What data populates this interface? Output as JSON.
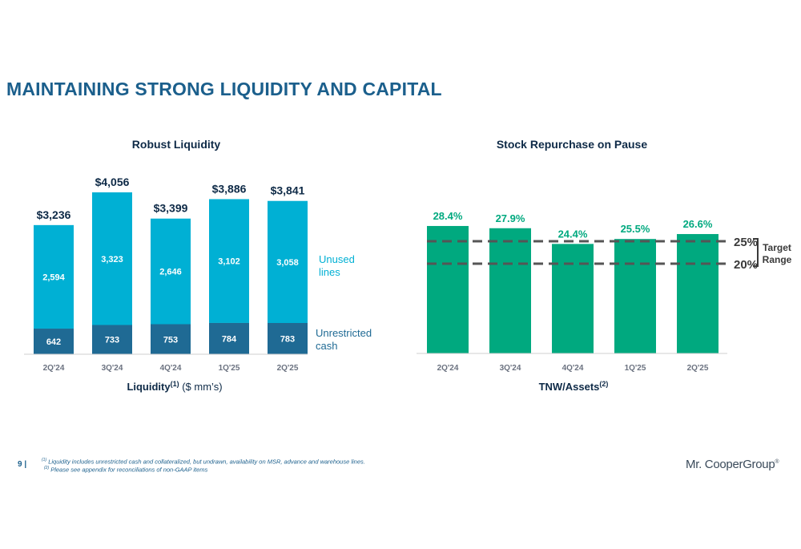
{
  "page_title": "MAINTAINING STRONG LIQUIDITY AND CAPITAL",
  "colors": {
    "title": "#1b5f8c",
    "unused_lines": "#00b0d4",
    "unrestricted_cash": "#1f6a94",
    "tnw_bar": "#00a97f",
    "dashed_line": "#555555"
  },
  "chart_data": [
    {
      "type": "bar",
      "stacked": true,
      "title": "Robust Liquidity",
      "xlabel": "Liquidity",
      "xlabel_sup": "(1)",
      "xlabel_units": "($ mm’s)",
      "categories": [
        "2Q'24",
        "3Q'24",
        "4Q'24",
        "1Q'25",
        "2Q'25"
      ],
      "series": [
        {
          "name": "Unrestricted cash",
          "label_line1": "Unrestricted",
          "label_line2": "cash",
          "values": [
            642,
            733,
            753,
            784,
            783
          ],
          "labels": [
            "642",
            "733",
            "753",
            "784",
            "783"
          ]
        },
        {
          "name": "Unused lines",
          "label_line1": "Unused",
          "label_line2": "lines",
          "values": [
            2594,
            3323,
            2646,
            3102,
            3058
          ],
          "labels": [
            "2,594",
            "3,323",
            "2,646",
            "3,102",
            "3,058"
          ]
        }
      ],
      "totals": [
        3236,
        4056,
        3399,
        3886,
        3841
      ],
      "total_labels": [
        "$3,236",
        "$4,056",
        "$3,399",
        "$3,886",
        "$3,841"
      ]
    },
    {
      "type": "bar",
      "title": "Stock Repurchase on Pause",
      "xlabel": "TNW/Assets",
      "xlabel_sup": "(2)",
      "categories": [
        "2Q'24",
        "3Q'24",
        "4Q'24",
        "1Q'25",
        "2Q'25"
      ],
      "values": [
        28.4,
        27.9,
        24.4,
        25.5,
        26.6
      ],
      "value_labels": [
        "28.4%",
        "27.9%",
        "24.4%",
        "25.5%",
        "26.6%"
      ],
      "reference_lines": [
        {
          "value": 25,
          "label": "25%"
        },
        {
          "value": 20,
          "label": "20%"
        }
      ],
      "bracket_label_line1": "Target",
      "bracket_label_line2": "Range"
    }
  ],
  "footer": {
    "page_number": "9  |",
    "note1_sup": "(1)",
    "note1": " Liquidity includes unrestricted cash and collateralized, but undrawn, availability on MSR, advance and warehouse lines.",
    "note2_sup": "(2)",
    "note2": " Please see appendix for reconciliations of non-GAAP items",
    "logo_text": "Mr. CooperGroup",
    "logo_sup": "®"
  }
}
